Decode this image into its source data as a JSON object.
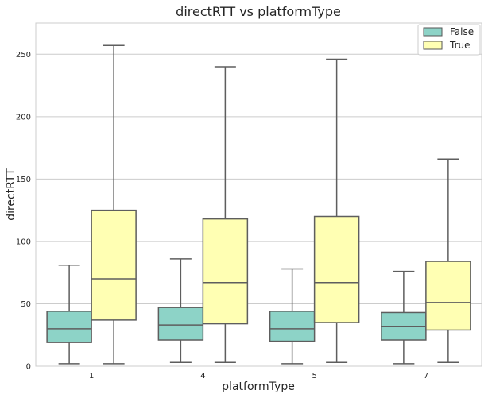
{
  "chart_data": {
    "type": "boxplot",
    "title": "directRTT vs platformType",
    "xlabel": "platformType",
    "ylabel": "directRTT",
    "categories": [
      "1",
      "4",
      "5",
      "7"
    ],
    "ylim": [
      0,
      275
    ],
    "yticks": [
      0,
      50,
      100,
      150,
      200,
      250
    ],
    "grid": true,
    "legend_position": "top-right",
    "series": [
      {
        "name": "False",
        "color": "#8dd3c7",
        "boxes": [
          {
            "whislo": 2,
            "q1": 19,
            "med": 30,
            "q3": 44,
            "whishi": 81
          },
          {
            "whislo": 3,
            "q1": 21,
            "med": 33,
            "q3": 47,
            "whishi": 86
          },
          {
            "whislo": 2,
            "q1": 20,
            "med": 30,
            "q3": 44,
            "whishi": 78
          },
          {
            "whislo": 2,
            "q1": 21,
            "med": 32,
            "q3": 43,
            "whishi": 76
          }
        ]
      },
      {
        "name": "True",
        "color": "#ffffb3",
        "boxes": [
          {
            "whislo": 2,
            "q1": 37,
            "med": 70,
            "q3": 125,
            "whishi": 257
          },
          {
            "whislo": 3,
            "q1": 34,
            "med": 67,
            "q3": 118,
            "whishi": 240
          },
          {
            "whislo": 3,
            "q1": 35,
            "med": 67,
            "q3": 120,
            "whishi": 246
          },
          {
            "whislo": 3,
            "q1": 29,
            "med": 51,
            "q3": 84,
            "whishi": 166
          }
        ]
      }
    ]
  }
}
